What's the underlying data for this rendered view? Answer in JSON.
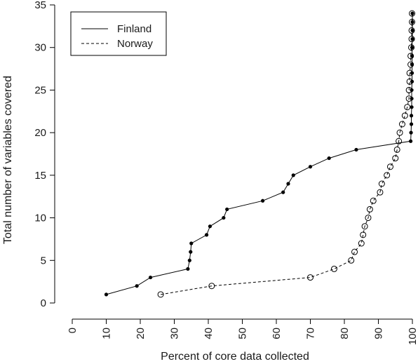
{
  "chart_data": {
    "type": "line",
    "title": "",
    "xlabel": "Percent of core data collected",
    "ylabel": "Total number of variables covered",
    "xlim": [
      0,
      100
    ],
    "ylim": [
      0,
      35
    ],
    "x_ticks": [
      "0",
      "10",
      "20",
      "30",
      "40",
      "50",
      "60",
      "70",
      "80",
      "90",
      "100"
    ],
    "y_ticks": [
      "0",
      "5",
      "10",
      "15",
      "20",
      "25",
      "30",
      "35"
    ],
    "grid": false,
    "legend_position": "top-left",
    "series": [
      {
        "name": "Finland",
        "line_style": "solid",
        "marker": "filled-dot",
        "color": "#000000",
        "points": [
          [
            10,
            1
          ],
          [
            19,
            2
          ],
          [
            23,
            3
          ],
          [
            34,
            4
          ],
          [
            34.5,
            5
          ],
          [
            34.8,
            6
          ],
          [
            35,
            7
          ],
          [
            39.5,
            8
          ],
          [
            40.5,
            9
          ],
          [
            44.5,
            10
          ],
          [
            45.5,
            11
          ],
          [
            56,
            12
          ],
          [
            62,
            13
          ],
          [
            63.5,
            14
          ],
          [
            65,
            15
          ],
          [
            70,
            16
          ],
          [
            75.5,
            17
          ],
          [
            83.5,
            18
          ],
          [
            99.5,
            19
          ],
          [
            99.6,
            20
          ],
          [
            99.7,
            21
          ],
          [
            99.7,
            22
          ],
          [
            99.8,
            23
          ],
          [
            99.8,
            24
          ],
          [
            99.8,
            25
          ],
          [
            99.9,
            26
          ],
          [
            99.9,
            27
          ],
          [
            99.9,
            28
          ],
          [
            99.9,
            29
          ],
          [
            99.9,
            30
          ],
          [
            100,
            31
          ],
          [
            100,
            32
          ],
          [
            100,
            33
          ],
          [
            100,
            34
          ]
        ]
      },
      {
        "name": "Norway",
        "line_style": "dashed",
        "marker": "open-circle",
        "color": "#000000",
        "points": [
          [
            26,
            1
          ],
          [
            41,
            2
          ],
          [
            70,
            3
          ],
          [
            77,
            4
          ],
          [
            82,
            5
          ],
          [
            83,
            6
          ],
          [
            85,
            7
          ],
          [
            85.5,
            8
          ],
          [
            86,
            9
          ],
          [
            87,
            10
          ],
          [
            87.5,
            11
          ],
          [
            88.5,
            12
          ],
          [
            90.5,
            13
          ],
          [
            91,
            14
          ],
          [
            92.5,
            15
          ],
          [
            93.5,
            16
          ],
          [
            95,
            17
          ],
          [
            95.5,
            18
          ],
          [
            96,
            19
          ],
          [
            96.3,
            20
          ],
          [
            97,
            21
          ],
          [
            97.8,
            22
          ],
          [
            98.5,
            23
          ],
          [
            99,
            24
          ],
          [
            99,
            25
          ],
          [
            99.2,
            26
          ],
          [
            99.2,
            27
          ],
          [
            99.5,
            28
          ],
          [
            99.5,
            29
          ],
          [
            99.7,
            30
          ],
          [
            99.8,
            31
          ],
          [
            99.8,
            32
          ],
          [
            99.9,
            33
          ],
          [
            99.9,
            34
          ]
        ]
      }
    ]
  }
}
